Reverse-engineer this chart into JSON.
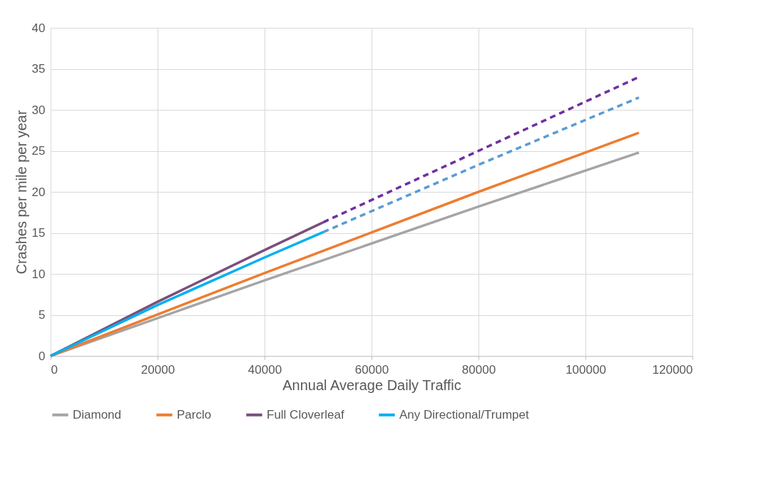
{
  "chart_data": {
    "type": "line",
    "xlabel": "Annual Average Daily Traffic",
    "ylabel": "Crashes per mile per year",
    "xlim": [
      0,
      120000
    ],
    "xticks": [
      0,
      20000,
      40000,
      60000,
      80000,
      100000,
      120000
    ],
    "ylim": [
      0,
      40
    ],
    "yticks": [
      0,
      5,
      10,
      15,
      20,
      25,
      30,
      35,
      40
    ],
    "grid": true,
    "legend": "bottom",
    "marker": "none",
    "series": [
      {
        "name": "Diamond",
        "color": "#a5a5a5",
        "line_style": "solid",
        "x": [
          0,
          40000,
          80000,
          110000
        ],
        "values": [
          0,
          9.2,
          18.2,
          24.8
        ]
      },
      {
        "name": "Parclo",
        "color": "#ed7d31",
        "line_style": "solid",
        "x": [
          0,
          40000,
          80000,
          110000
        ],
        "values": [
          0,
          10.1,
          20.0,
          27.2
        ]
      },
      {
        "name": "Full Cloverleaf",
        "color": "#7b4f7b",
        "line_style": "solid",
        "x": [
          0,
          20000,
          40000,
          51000
        ],
        "values": [
          0,
          6.6,
          12.9,
          16.3
        ]
      },
      {
        "name": "Any Directional/Trumpet",
        "color": "#00b0f0",
        "line_style": "solid",
        "x": [
          0,
          20000,
          40000,
          51000
        ],
        "values": [
          0,
          6.2,
          12.0,
          15.1
        ]
      },
      {
        "color": "#7030a0",
        "line_style": "dashed",
        "x": [
          51000,
          80000,
          110000
        ],
        "values": [
          16.3,
          25.0,
          34.0
        ]
      },
      {
        "color": "#5b9bd5",
        "line_style": "dashed",
        "x": [
          51000,
          80000,
          110000
        ],
        "values": [
          15.1,
          23.3,
          31.5
        ]
      }
    ]
  }
}
